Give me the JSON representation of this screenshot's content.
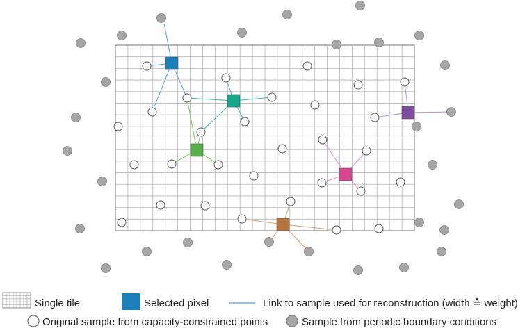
{
  "colors": {
    "grid_line": "#b5b5b5",
    "grid_border": "#8a8a8a",
    "boundary_sample": "#a6a6a6",
    "link_blue": "#5a9fc9",
    "link_teal": "#4ab0a0",
    "link_green": "#7fbf60",
    "link_pink": "#d89ac0",
    "link_purple": "#a99ac4",
    "link_brown": "#c8a37e",
    "pixel_blue": "#1b7fba",
    "pixel_teal": "#13a88a",
    "pixel_green": "#57b04a",
    "pixel_pink": "#d9458f",
    "pixel_purple": "#7f4da0",
    "pixel_brown": "#b8743f"
  },
  "legend": {
    "single_tile": "Single tile",
    "selected_pixel": "Selected pixel",
    "link_label": "Link to sample used for reconstruction (width ≙ weight)",
    "original_sample": "Original sample from capacity-constrained points",
    "boundary_sample": "Sample from periodic boundary conditions"
  }
}
